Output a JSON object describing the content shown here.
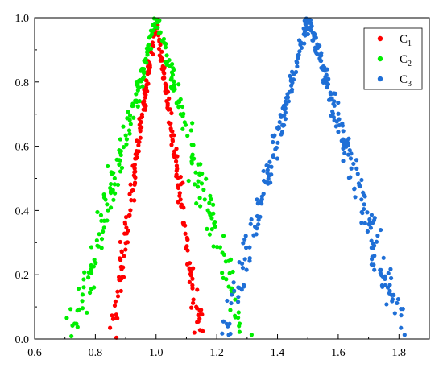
{
  "chart_data": {
    "type": "scatter",
    "title": "",
    "xlabel": "",
    "ylabel": "",
    "xlim": [
      0.6,
      1.9
    ],
    "ylim": [
      0.0,
      1.0
    ],
    "x_ticks": [
      "0.6",
      "0.8",
      "1.0",
      "1.2",
      "1.4",
      "1.6",
      "1.8"
    ],
    "y_ticks": [
      "0.0",
      "0.2",
      "0.4",
      "0.6",
      "0.8",
      "1.0"
    ],
    "grid": false,
    "legend_position": "top-right",
    "series": [
      {
        "name": "C",
        "subscript": "1",
        "color": "#ff0000",
        "peak_x": 1.0,
        "support_min": 0.84,
        "support_max": 1.16,
        "count": 260
      },
      {
        "name": "C",
        "subscript": "2",
        "color": "#00ee00",
        "peak_x": 1.0,
        "support_min": 0.7,
        "support_max": 1.32,
        "count": 260
      },
      {
        "name": "C",
        "subscript": "3",
        "color": "#1f6fd6",
        "peak_x": 1.5,
        "support_min": 1.2,
        "support_max": 1.84,
        "count": 330
      }
    ]
  }
}
